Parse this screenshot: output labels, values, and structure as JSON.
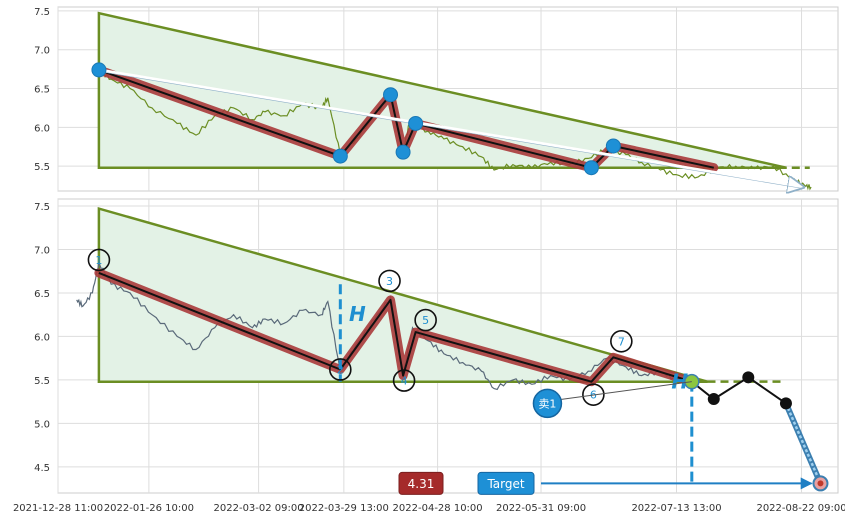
{
  "chart_data": [
    {
      "type": "line",
      "panel": "top",
      "x_range": [
        "2021-12-28 11:00",
        "2022-09-03 00:00"
      ],
      "ylim": [
        5.18,
        7.55
      ],
      "yticks": [
        5.5,
        6.0,
        6.5,
        7.0,
        7.5
      ],
      "ytick_labels": [
        "5.5",
        "6.0",
        "6.5",
        "7.0",
        "7.5"
      ],
      "grid": true,
      "triangle": [
        [
          "2022-01-10 12:00",
          7.47
        ],
        [
          "2022-01-10 12:00",
          5.48
        ],
        [
          "2022-08-17 12:00",
          5.48
        ]
      ],
      "price_series": [
        [
          "2022-01-10 12:00",
          6.74
        ],
        [
          "2022-01-14 10:00",
          6.62
        ],
        [
          "2022-01-20 10:00",
          6.5
        ],
        [
          "2022-01-27 10:00",
          6.25
        ],
        [
          "2022-02-04 10:00",
          6.05
        ],
        [
          "2022-02-10 10:00",
          5.9
        ],
        [
          "2022-02-16 10:00",
          6.15
        ],
        [
          "2022-02-22 10:00",
          6.25
        ],
        [
          "2022-02-28 10:00",
          6.1
        ],
        [
          "2022-03-04 10:00",
          6.2
        ],
        [
          "2022-03-10 10:00",
          6.15
        ],
        [
          "2022-03-16 10:00",
          6.3
        ],
        [
          "2022-03-22 10:00",
          6.25
        ],
        [
          "2022-03-24 10:00",
          6.38
        ],
        [
          "2022-03-28 10:00",
          5.65
        ],
        [
          "2022-04-02 10:00",
          5.85
        ],
        [
          "2022-04-08 10:00",
          6.15
        ],
        [
          "2022-04-13 10:00",
          6.42
        ],
        [
          "2022-04-17 10:00",
          5.7
        ],
        [
          "2022-04-19 10:00",
          6.05
        ],
        [
          "2022-04-25 10:00",
          5.95
        ],
        [
          "2022-04-30 10:00",
          5.85
        ],
        [
          "2022-05-06 10:00",
          5.75
        ],
        [
          "2022-05-12 10:00",
          5.62
        ],
        [
          "2022-05-16 10:00",
          5.45
        ],
        [
          "2022-05-22 10:00",
          5.52
        ],
        [
          "2022-05-28 10:00",
          5.48
        ],
        [
          "2022-06-03 10:00",
          5.55
        ],
        [
          "2022-06-09 10:00",
          5.52
        ],
        [
          "2022-06-15 10:00",
          5.6
        ],
        [
          "2022-06-21 10:00",
          5.72
        ],
        [
          "2022-06-27 10:00",
          5.65
        ],
        [
          "2022-07-02 10:00",
          5.55
        ],
        [
          "2022-07-08 10:00",
          5.45
        ],
        [
          "2022-07-14 10:00",
          5.38
        ],
        [
          "2022-07-20 10:00",
          5.36
        ],
        [
          "2022-07-26 10:00",
          5.48
        ],
        [
          "2022-08-01 10:00",
          5.5
        ],
        [
          "2022-08-07 10:00",
          5.47
        ],
        [
          "2022-08-13 10:00",
          5.5
        ],
        [
          "2022-08-19 10:00",
          5.33
        ],
        [
          "2022-08-23 10:00",
          5.25
        ],
        [
          "2022-08-25 10:00",
          5.23
        ]
      ],
      "pivots": [
        [
          "2022-01-10 12:00",
          6.74
        ],
        [
          "2022-03-28 10:00",
          5.63
        ],
        [
          "2022-04-13 10:00",
          6.42
        ],
        [
          "2022-04-17 10:00",
          5.68
        ],
        [
          "2022-04-21 10:00",
          6.05
        ],
        [
          "2022-06-16 10:00",
          5.48
        ],
        [
          "2022-06-23 10:00",
          5.76
        ]
      ],
      "pattern_end": [
        "2022-07-25 10:00",
        5.48
      ],
      "support_extension": [
        [
          "2022-07-25 10:00",
          5.48
        ],
        [
          "2022-08-25 00:00",
          5.48
        ]
      ],
      "trend_arrow": [
        [
          "2022-01-10 12:00",
          6.74
        ],
        [
          "2022-08-23 00:00",
          5.23
        ]
      ]
    },
    {
      "type": "line",
      "panel": "bottom",
      "x_range": [
        "2021-12-28 11:00",
        "2022-09-03 00:00"
      ],
      "ylim": [
        4.2,
        7.58
      ],
      "yticks": [
        4.5,
        5.0,
        5.5,
        6.0,
        6.5,
        7.0,
        7.5
      ],
      "ytick_labels": [
        "4.5",
        "5.0",
        "5.5",
        "6.0",
        "6.5",
        "7.0",
        "7.5"
      ],
      "xticks": [
        "2021-12-28 11:00",
        "2022-01-26 10:00",
        "2022-03-02 09:00",
        "2022-03-29 13:00",
        "2022-04-28 10:00",
        "2022-05-31 09:00",
        "2022-07-13 13:00",
        "2022-08-22 09:00"
      ],
      "xtick_labels": [
        "2021-12-28 11:00",
        "2022-01-26 10:00",
        "2022-03-02 09:00",
        "2022-03-29 13:00",
        "2022-04-28 10:00",
        "2022-05-31 09:00",
        "2022-07-13 13:00",
        "2022-08-22 09:00"
      ],
      "grid": true,
      "triangle": [
        [
          "2022-01-10 12:00",
          7.47
        ],
        [
          "2022-01-10 12:00",
          5.48
        ],
        [
          "2022-07-23 10:00",
          5.48
        ]
      ],
      "price_series": [
        [
          "2022-01-03 10:00",
          6.42
        ],
        [
          "2022-01-05 10:00",
          6.35
        ],
        [
          "2022-01-08 10:00",
          6.5
        ],
        [
          "2022-01-10 12:00",
          6.85
        ],
        [
          "2022-01-14 10:00",
          6.6
        ],
        [
          "2022-01-20 10:00",
          6.5
        ],
        [
          "2022-01-27 10:00",
          6.25
        ],
        [
          "2022-02-04 10:00",
          6.0
        ],
        [
          "2022-02-10 10:00",
          5.85
        ],
        [
          "2022-02-16 10:00",
          6.1
        ],
        [
          "2022-02-22 10:00",
          6.25
        ],
        [
          "2022-02-28 10:00",
          6.1
        ],
        [
          "2022-03-04 10:00",
          6.2
        ],
        [
          "2022-03-10 10:00",
          6.15
        ],
        [
          "2022-03-16 10:00",
          6.3
        ],
        [
          "2022-03-22 10:00",
          6.25
        ],
        [
          "2022-03-24 10:00",
          6.4
        ],
        [
          "2022-03-28 10:00",
          5.6
        ],
        [
          "2022-04-02 10:00",
          5.9
        ],
        [
          "2022-04-08 10:00",
          6.2
        ],
        [
          "2022-04-13 10:00",
          6.45
        ],
        [
          "2022-04-17 10:00",
          5.55
        ],
        [
          "2022-04-20 10:00",
          6.1
        ],
        [
          "2022-04-25 10:00",
          5.95
        ],
        [
          "2022-04-30 10:00",
          5.8
        ],
        [
          "2022-05-06 10:00",
          5.7
        ],
        [
          "2022-05-12 10:00",
          5.6
        ],
        [
          "2022-05-16 10:00",
          5.4
        ],
        [
          "2022-05-22 10:00",
          5.5
        ],
        [
          "2022-05-28 10:00",
          5.45
        ],
        [
          "2022-06-03 10:00",
          5.55
        ],
        [
          "2022-06-09 10:00",
          5.5
        ],
        [
          "2022-06-15 10:00",
          5.6
        ],
        [
          "2022-06-21 10:00",
          5.75
        ],
        [
          "2022-06-27 10:00",
          5.65
        ],
        [
          "2022-07-02 10:00",
          5.55
        ],
        [
          "2022-07-08 10:00",
          5.6
        ],
        [
          "2022-07-12 10:00",
          5.52
        ]
      ],
      "pivots": [
        {
          "label": "1",
          "x": "2022-01-10 12:00",
          "y": 6.73
        },
        {
          "label": "2",
          "x": "2022-03-28 10:00",
          "y": 5.62
        },
        {
          "label": "3",
          "x": "2022-04-13 10:00",
          "y": 6.42
        },
        {
          "label": "4",
          "x": "2022-04-17 10:00",
          "y": 5.55
        },
        {
          "label": "5",
          "x": "2022-04-21 10:00",
          "y": 6.05
        },
        {
          "label": "6",
          "x": "2022-06-16 10:00",
          "y": 5.48
        },
        {
          "label": "7",
          "x": "2022-06-23 10:00",
          "y": 5.76
        }
      ],
      "breakout_point": [
        "2022-07-18 10:00",
        5.48
      ],
      "support_extension": [
        [
          "2022-07-23 10:00",
          5.48
        ],
        [
          "2022-08-17 00:00",
          5.48
        ]
      ],
      "height_marker_1": {
        "label": "H",
        "x": "2022-03-28 10:00",
        "y_from": 6.6,
        "y_to": 5.48
      },
      "height_marker_2": {
        "label": "H",
        "x": "2022-07-18 10:00",
        "y_from": 5.48,
        "y_to": 4.31
      },
      "projection": [
        [
          "2022-07-18 10:00",
          5.48
        ],
        [
          "2022-07-25 10:00",
          5.28
        ],
        [
          "2022-08-05 10:00",
          5.53
        ],
        [
          "2022-08-17 10:00",
          5.23
        ],
        [
          "2022-08-28 10:00",
          4.31
        ]
      ],
      "sell_signal": {
        "label": "卖1",
        "x": "2022-06-02 10:00",
        "y": 5.23
      },
      "target": {
        "label": "Target",
        "value_label": "4.31",
        "value": 4.31,
        "x": "2022-08-28 10:00"
      }
    }
  ]
}
